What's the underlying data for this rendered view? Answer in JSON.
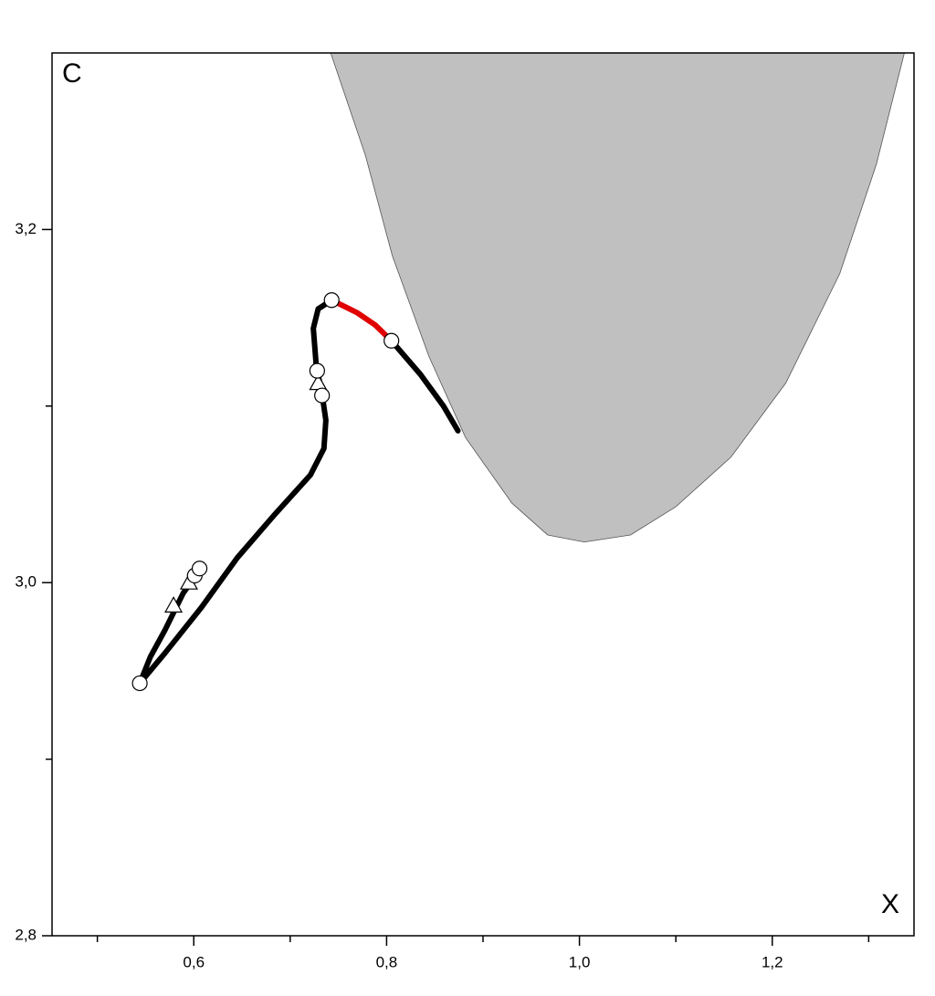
{
  "chart_data": {
    "type": "line",
    "xlabel": "X",
    "ylabel": "C",
    "xlim": [
      0.453,
      1.347
    ],
    "ylim": [
      2.8,
      3.3
    ],
    "xticks": [
      {
        "value": 0.6,
        "label": "0,6"
      },
      {
        "value": 0.8,
        "label": "0,8"
      },
      {
        "value": 1.0,
        "label": "1,0"
      },
      {
        "value": 1.2,
        "label": "1,2"
      }
    ],
    "xminorticks": [
      0.5,
      0.7,
      0.9,
      1.1,
      1.3
    ],
    "yticks": [
      {
        "value": 2.8,
        "label": "2,8"
      },
      {
        "value": 3.0,
        "label": "3,0"
      },
      {
        "value": 3.2,
        "label": "3,2"
      }
    ],
    "yminorticks": [
      2.9,
      3.1
    ],
    "grid": false,
    "series": [
      {
        "kind": "area",
        "color": "#c0c0c0",
        "x": [
          0.742,
          0.778,
          0.806,
          0.844,
          0.882,
          0.93,
          0.967,
          1.005,
          1.053,
          1.1,
          1.157,
          1.214,
          1.27,
          1.308,
          1.337
        ],
        "values": [
          3.3,
          3.242,
          3.185,
          3.128,
          3.082,
          3.045,
          3.027,
          3.023,
          3.027,
          3.043,
          3.071,
          3.113,
          3.175,
          3.237,
          3.3
        ]
      },
      {
        "kind": "line",
        "color": "#000000",
        "x": [
          0.606,
          0.589,
          0.57,
          0.555,
          0.544,
          0.57,
          0.608,
          0.645,
          0.683,
          0.721,
          0.735,
          0.737,
          0.733,
          0.727,
          0.724,
          0.729,
          0.743
        ],
        "values": [
          3.007,
          2.994,
          2.973,
          2.958,
          2.943,
          2.96,
          2.986,
          3.014,
          3.038,
          3.061,
          3.076,
          3.092,
          3.107,
          3.123,
          3.144,
          3.155,
          3.16
        ]
      },
      {
        "kind": "line",
        "color": "#e00000",
        "x": [
          0.743,
          0.769,
          0.788,
          0.805
        ],
        "values": [
          3.16,
          3.153,
          3.146,
          3.137
        ]
      },
      {
        "kind": "line",
        "color": "#000000",
        "x": [
          0.805,
          0.835,
          0.859,
          0.874
        ],
        "values": [
          3.137,
          3.118,
          3.1,
          3.086
        ]
      },
      {
        "kind": "marker",
        "marker": "triangle",
        "color": "#ffffff",
        "x": [
          0.579,
          0.595,
          0.729
        ],
        "values": [
          2.987,
          3.0,
          3.113
        ]
      },
      {
        "kind": "marker",
        "marker": "circle",
        "color": "#ffffff",
        "x": [
          0.544,
          0.601,
          0.606,
          0.728,
          0.733,
          0.743,
          0.805
        ],
        "values": [
          2.943,
          3.004,
          3.008,
          3.12,
          3.106,
          3.16,
          3.137
        ]
      }
    ]
  }
}
